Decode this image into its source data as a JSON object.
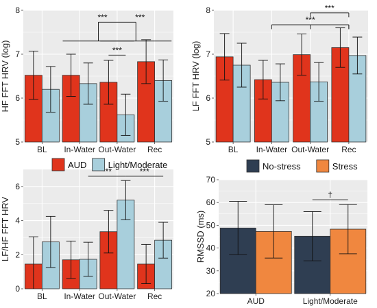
{
  "colors": {
    "AUD": "#e0341c",
    "Light/Moderate": "#a8cfdc",
    "No-stress": "#2f3e52",
    "Stress": "#f0873f",
    "panel_bg": "#ebebeb",
    "grid": "#ffffff",
    "bracket": "#111111"
  },
  "chart_data": [
    {
      "id": "A",
      "type": "bar",
      "ylabel": "HF FFT HRV (log)",
      "ylim": [
        5,
        8
      ],
      "yticks": [
        5,
        6,
        7,
        8
      ],
      "categories": [
        "BL",
        "In-Water",
        "Out-Water",
        "Rec"
      ],
      "series": [
        {
          "name": "AUD",
          "color_key": "AUD",
          "values": [
            6.52,
            6.52,
            6.36,
            6.83
          ],
          "err": [
            0.55,
            0.48,
            0.5,
            0.5
          ]
        },
        {
          "name": "Light/Moderate",
          "color_key": "Light/Moderate",
          "values": [
            6.2,
            6.33,
            5.62,
            6.4
          ],
          "err": [
            0.52,
            0.47,
            0.47,
            0.47
          ]
        }
      ],
      "significance": [
        {
          "label": "***",
          "kind": "simple",
          "from": [
            2,
            0
          ],
          "to": [
            2,
            1
          ],
          "y": 6.98
        },
        {
          "label": "***",
          "kind": "nested",
          "groups": [
            [
              1,
              2
            ],
            [
              2,
              3
            ]
          ],
          "legY": 7.3,
          "topY": 7.73
        }
      ]
    },
    {
      "id": "B",
      "type": "bar",
      "ylabel": "LF FFT HRV (log)",
      "ylim": [
        5,
        8
      ],
      "yticks": [
        5,
        6,
        7,
        8
      ],
      "categories": [
        "BL",
        "In-Water",
        "Out-Water",
        "Rec"
      ],
      "series": [
        {
          "name": "AUD",
          "color_key": "AUD",
          "values": [
            6.94,
            6.42,
            6.99,
            7.15
          ],
          "err": [
            0.53,
            0.44,
            0.47,
            0.45
          ]
        },
        {
          "name": "Light/Moderate",
          "color_key": "Light/Moderate",
          "values": [
            6.75,
            6.36,
            6.37,
            6.97
          ],
          "err": [
            0.5,
            0.42,
            0.44,
            0.42
          ]
        }
      ],
      "significance": [
        {
          "label": "***",
          "kind": "multi",
          "pairs": [
            [
              1,
              3
            ],
            [
              2,
              3
            ]
          ],
          "y": 7.67,
          "tickDown": 0.1,
          "labelAt": 0
        },
        {
          "label": "***",
          "kind": "multi",
          "pairs": [
            [
              2,
              3
            ]
          ],
          "y": 7.94,
          "tickDown": 0.1,
          "labelAt": 0
        }
      ]
    },
    {
      "id": "C",
      "type": "bar",
      "ylabel": "LF/HF FFT HRV",
      "ylim": [
        0,
        7
      ],
      "yticks": [
        0,
        2,
        4,
        6
      ],
      "categories": [
        "BL",
        "In-Water",
        "Out-Water",
        "Rec"
      ],
      "series": [
        {
          "name": "AUD",
          "color_key": "AUD",
          "values": [
            1.45,
            1.7,
            3.35,
            1.45
          ],
          "err": [
            1.6,
            1.1,
            1.25,
            1.15
          ]
        },
        {
          "name": "Light/Moderate",
          "color_key": "Light/Moderate",
          "values": [
            2.75,
            1.73,
            5.2,
            2.85
          ],
          "err": [
            1.5,
            1.0,
            1.15,
            1.05
          ]
        }
      ],
      "significance": [
        {
          "label": "***",
          "kind": "simple",
          "from": [
            1,
            1
          ],
          "to": [
            2,
            1
          ],
          "y": 6.6
        },
        {
          "label": "***",
          "kind": "simple",
          "from": [
            2,
            1
          ],
          "to": [
            3,
            1
          ],
          "y": 6.6
        }
      ],
      "legend": {
        "position": "top",
        "entries": [
          "AUD",
          "Light/Moderate"
        ]
      }
    },
    {
      "id": "D",
      "type": "bar",
      "ylabel": "RMSSD (ms)",
      "ylim": [
        20,
        70
      ],
      "yticks": [
        20,
        30,
        40,
        50,
        60,
        70
      ],
      "categories": [
        "AUD",
        "Light/Moderate"
      ],
      "series": [
        {
          "name": "No-stress",
          "color_key": "No-stress",
          "values": [
            48.8,
            45.2
          ],
          "err": [
            11.7,
            10.8
          ]
        },
        {
          "name": "Stress",
          "color_key": "Stress",
          "values": [
            47.3,
            48.3
          ],
          "err": [
            11.7,
            10.8
          ]
        }
      ],
      "significance": [
        {
          "label": "†",
          "kind": "simple",
          "from": [
            1,
            0
          ],
          "to": [
            1,
            1
          ],
          "y": 61.2
        }
      ],
      "legend": {
        "position": "top",
        "entries": [
          "No-stress",
          "Stress"
        ]
      }
    }
  ]
}
